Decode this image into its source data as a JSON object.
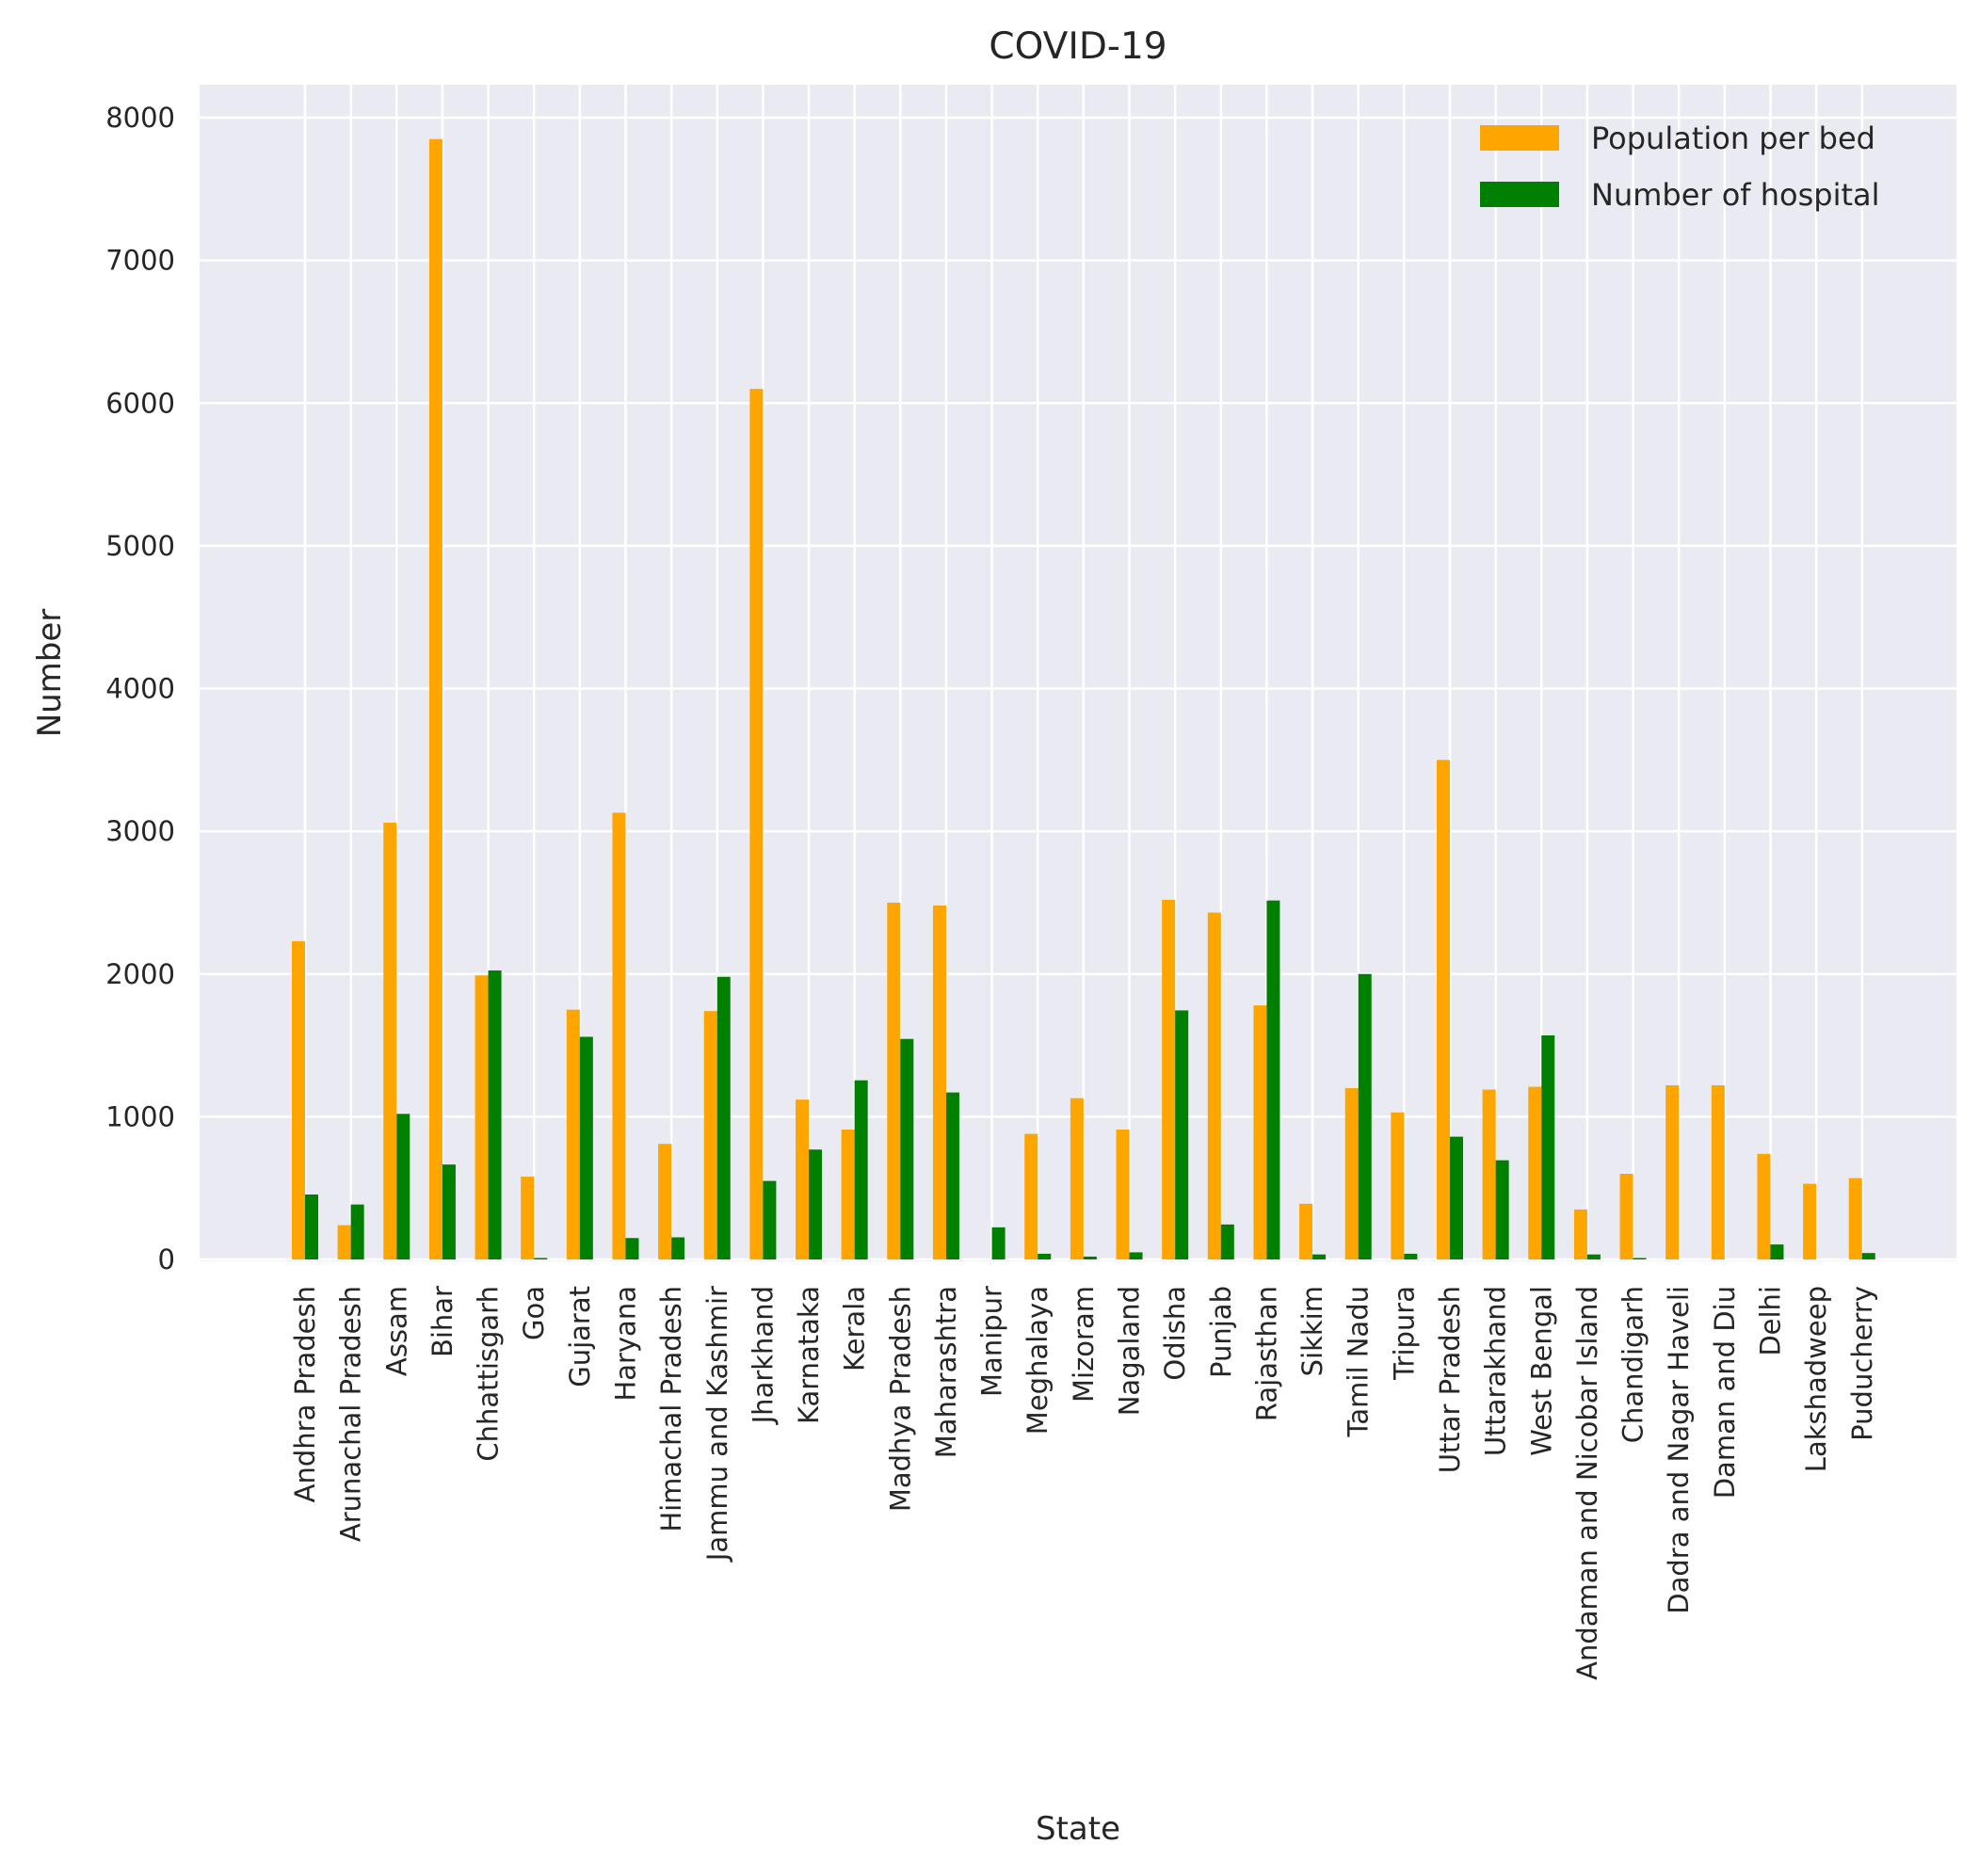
{
  "chart_data": {
    "type": "bar",
    "title": "COVID-19",
    "xlabel": "State",
    "ylabel": "Number",
    "ylim": [
      0,
      8250
    ],
    "yticks": [
      0,
      1000,
      2000,
      3000,
      4000,
      5000,
      6000,
      7000,
      8000
    ],
    "grid": true,
    "legend_position": "top-right",
    "categories": [
      "Andhra Pradesh",
      "Arunachal Pradesh",
      "Assam",
      "Bihar",
      "Chhattisgarh",
      "Goa",
      "Gujarat",
      "Haryana",
      "Himachal Pradesh",
      "Jammu and Kashmir",
      "Jharkhand",
      "Karnataka",
      "Kerala",
      "Madhya Pradesh",
      "Maharashtra",
      "Manipur",
      "Meghalaya",
      "Mizoram",
      "Nagaland",
      "Odisha",
      "Punjab",
      "Rajasthan",
      "Sikkim",
      "Tamil Nadu",
      "Tripura",
      "Uttar Pradesh",
      "Uttarakhand",
      "West Bengal",
      "Andaman and Nicobar Island",
      "Chandigarh",
      "Dadra and Nagar Haveli",
      "Daman and Diu",
      "Delhi",
      "Lakshadweep",
      "Puducherry"
    ],
    "series": [
      {
        "name": "Population per bed",
        "color": "#FFA500",
        "values": [
          2230,
          240,
          3060,
          7850,
          1990,
          580,
          1750,
          3130,
          810,
          1740,
          6100,
          1120,
          910,
          2500,
          2480,
          0,
          880,
          1130,
          910,
          2520,
          2430,
          1780,
          390,
          1200,
          1030,
          3500,
          1190,
          1210,
          350,
          600,
          1220,
          1220,
          740,
          530,
          570
        ]
      },
      {
        "name": "Number of hospital",
        "color": "#008000",
        "values": [
          455,
          385,
          1020,
          665,
          2025,
          10,
          1560,
          150,
          155,
          1980,
          550,
          770,
          1255,
          1545,
          1170,
          225,
          40,
          20,
          50,
          1745,
          245,
          2515,
          35,
          2000,
          40,
          860,
          695,
          1570,
          35,
          10,
          0,
          0,
          105,
          0,
          45
        ]
      }
    ]
  }
}
